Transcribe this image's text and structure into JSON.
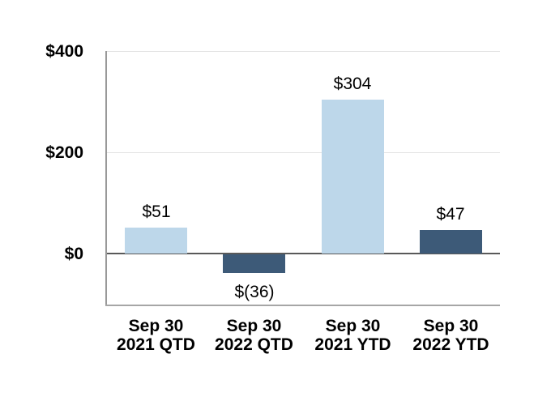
{
  "chart_data": {
    "type": "bar",
    "title": "",
    "xlabel": "",
    "ylabel": "",
    "categories": [
      [
        "Sep 30",
        "2021 QTD"
      ],
      [
        "Sep 30",
        "2022 QTD"
      ],
      [
        "Sep 30",
        "2021 YTD"
      ],
      [
        "Sep 30",
        "2022 YTD"
      ]
    ],
    "values": [
      51,
      -36,
      304,
      47
    ],
    "data_labels": [
      "$51",
      "$(36)",
      "$304",
      "$47"
    ],
    "bar_colors": [
      "#BDD7EA",
      "#3D5A78",
      "#BDD7EA",
      "#3D5A78"
    ],
    "y_axis": {
      "ylim": [
        -100,
        400
      ],
      "ticks": [
        {
          "value": 400,
          "label": "$400"
        },
        {
          "value": 200,
          "label": "$200"
        },
        {
          "value": 0,
          "label": "$0"
        }
      ],
      "gridline_values": [
        400,
        200
      ],
      "zero_line_value": 0
    },
    "legend": "none",
    "grid": "horizontal",
    "style": {
      "series_light_blue": "#BDD7EA",
      "series_dark_blue": "#3D5A78",
      "gridline_color": "#E3E3E3",
      "zero_line_color": "#595959",
      "axis_line_color": "#999999",
      "plot_bottom_border_color": "#A6A6A6",
      "label_color": "#000000",
      "background": "#FFFFFF"
    }
  }
}
